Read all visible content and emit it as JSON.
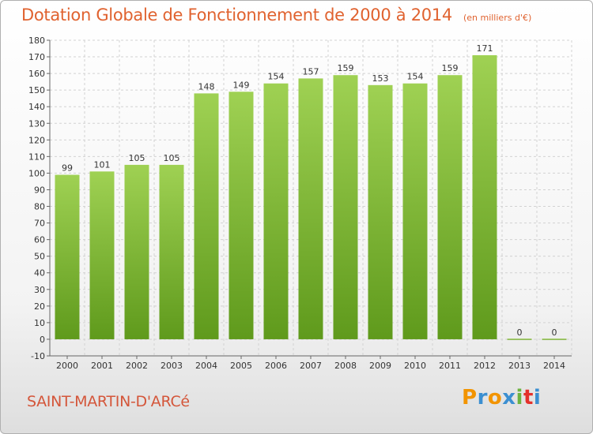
{
  "title": "Dotation Globale de Fonctionnement de 2000 à 2014",
  "unit_note": "(en milliers d'€)",
  "commune": "SAINT-MARTIN-D'ARCé",
  "logo": {
    "letters": [
      "P",
      "r",
      "o",
      "x",
      "i",
      "t",
      "i"
    ],
    "colors": [
      "#f29400",
      "#3b8fd1",
      "#f29400",
      "#3b8fd1",
      "#6cb33f",
      "#e4312b",
      "#3b8fd1"
    ]
  },
  "chart_data": {
    "type": "bar",
    "title": "Dotation Globale de Fonctionnement de 2000 à 2014",
    "subtitle": "(en milliers d'€)",
    "categories": [
      "2000",
      "2001",
      "2002",
      "2003",
      "2004",
      "2005",
      "2006",
      "2007",
      "2008",
      "2009",
      "2010",
      "2011",
      "2012",
      "2013",
      "2014"
    ],
    "values": [
      99,
      101,
      105,
      105,
      148,
      149,
      154,
      157,
      159,
      153,
      154,
      159,
      171,
      0,
      0
    ],
    "ylim": [
      -10,
      180
    ],
    "yticks": [
      -10,
      0,
      10,
      20,
      30,
      40,
      50,
      60,
      70,
      80,
      90,
      100,
      110,
      120,
      130,
      140,
      150,
      160,
      170,
      180
    ],
    "grid": true,
    "bar_color_top": "#9fd153",
    "bar_color_bottom": "#5f9a1c"
  }
}
